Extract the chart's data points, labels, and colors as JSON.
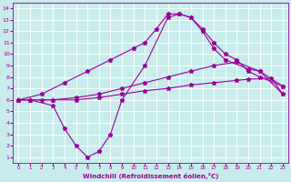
{
  "x_sparse1": [
    0,
    1,
    2,
    3,
    5,
    7,
    9,
    11,
    13,
    15,
    17,
    19,
    20,
    22,
    23
  ],
  "y_sparse1": [
    6.0,
    6.0,
    6.0,
    6.0,
    6.0,
    6.2,
    6.5,
    6.8,
    7.0,
    7.3,
    7.5,
    7.7,
    7.8,
    7.9,
    6.5
  ],
  "x_sparse2": [
    0,
    1,
    3,
    5,
    7,
    9,
    11,
    13,
    15,
    17,
    19,
    21,
    23
  ],
  "y_sparse2": [
    6.0,
    6.0,
    6.0,
    6.2,
    6.5,
    7.0,
    7.5,
    8.0,
    8.5,
    9.0,
    9.3,
    8.5,
    6.5
  ],
  "x_peaked": [
    0,
    2,
    4,
    6,
    8,
    10,
    11,
    12,
    13,
    14,
    15,
    16,
    17,
    18,
    19,
    20,
    21,
    23
  ],
  "y_peaked": [
    6.0,
    6.5,
    7.5,
    8.5,
    9.5,
    10.5,
    11.0,
    12.2,
    13.5,
    13.5,
    13.2,
    12.2,
    11.0,
    10.0,
    9.5,
    8.5,
    8.0,
    7.2
  ],
  "x_wavy": [
    0,
    1,
    3,
    4,
    5,
    6,
    7,
    8,
    9,
    11,
    13,
    14,
    15,
    16,
    17,
    18,
    20,
    21,
    23
  ],
  "y_wavy": [
    6.0,
    6.0,
    5.5,
    3.5,
    2.0,
    1.0,
    1.5,
    3.0,
    6.0,
    9.0,
    13.2,
    13.5,
    13.2,
    12.0,
    10.5,
    9.5,
    8.7,
    8.5,
    7.2
  ],
  "line_color": "#990099",
  "bg_color": "#c8ecec",
  "grid_color": "#ffffff",
  "xlabel": "Windchill (Refroidissement éolien,°C)",
  "xlim": [
    -0.5,
    23.5
  ],
  "ylim": [
    0.5,
    14.5
  ],
  "xticks": [
    0,
    1,
    2,
    3,
    4,
    5,
    6,
    7,
    8,
    9,
    10,
    11,
    12,
    13,
    14,
    15,
    16,
    17,
    18,
    19,
    20,
    21,
    22,
    23
  ],
  "yticks": [
    1,
    2,
    3,
    4,
    5,
    6,
    7,
    8,
    9,
    10,
    11,
    12,
    13,
    14
  ]
}
